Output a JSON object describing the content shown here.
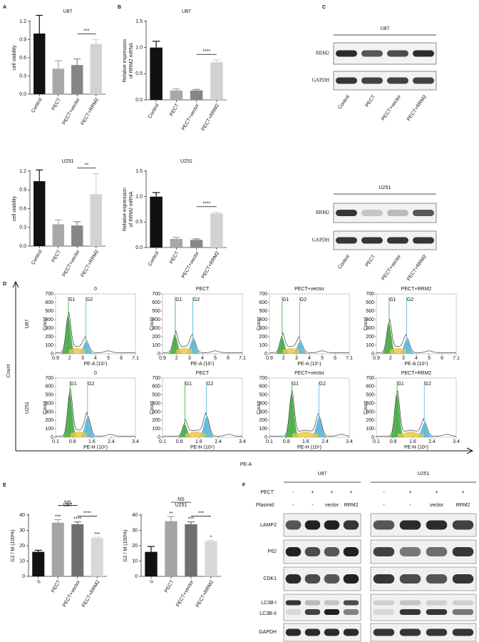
{
  "panels": [
    "A",
    "B",
    "C",
    "D",
    "E",
    "F"
  ],
  "chart_data": [
    {
      "type": "bar",
      "title": "U87",
      "ylabel": [
        "cell viability"
      ],
      "categories": [
        "Control",
        "PECT",
        "PECT+vector",
        "PECT+RRM2"
      ],
      "values": [
        1.0,
        0.42,
        0.48,
        0.83
      ],
      "errors": [
        0.3,
        0.13,
        0.1,
        0.07
      ],
      "colors": [
        "#111111",
        "#a8a8a8",
        "#868686",
        "#d2d2d2"
      ],
      "ylim": [
        0,
        1.2
      ],
      "yticks": [
        {
          "value": 0,
          "label": "0.0"
        },
        0.3,
        0.6,
        0.9,
        1.2
      ],
      "annotations": [
        "***"
      ]
    },
    {
      "type": "bar",
      "title": "U251",
      "ylabel": [
        "cell viability"
      ],
      "categories": [
        "Control",
        "PECT",
        "PECT+vector",
        "PECT+RRM2"
      ],
      "values": [
        1.04,
        0.35,
        0.33,
        0.83
      ],
      "errors": [
        0.18,
        0.07,
        0.06,
        0.33
      ],
      "colors": [
        "#111111",
        "#a8a8a8",
        "#868686",
        "#d2d2d2"
      ],
      "ylim": [
        0,
        1.2
      ],
      "yticks": [
        {
          "value": 0,
          "label": "0.0"
        },
        0.3,
        0.6,
        0.9,
        1.2
      ],
      "annotations": [
        "**"
      ]
    },
    {
      "type": "bar",
      "title": "U87",
      "ylabel": [
        "Relative expression",
        "of RRM2 mRNA"
      ],
      "categories": [
        "Control",
        "PECT",
        "PECT+vector",
        "PECT+RRM2"
      ],
      "values": [
        1.0,
        0.18,
        0.18,
        0.72
      ],
      "errors": [
        0.12,
        0.03,
        0.02,
        0.04
      ],
      "colors": [
        "#111111",
        "#a8a8a8",
        "#868686",
        "#d2d2d2"
      ],
      "ylim": [
        0,
        1.5
      ],
      "yticks": [
        {
          "value": 0,
          "label": "0.0"
        },
        0.5,
        {
          "value": 1,
          "label": "1.0"
        },
        1.5
      ],
      "annotations": [
        "****"
      ]
    },
    {
      "type": "bar",
      "title": "U251",
      "ylabel": [
        "Relative expression",
        "of RRM2 mRNA"
      ],
      "categories": [
        "Control",
        "PECT",
        "PECT+vector",
        "PECT+RRM2"
      ],
      "values": [
        1.0,
        0.17,
        0.15,
        0.67
      ],
      "errors": [
        0.08,
        0.03,
        0.02,
        0.02
      ],
      "colors": [
        "#111111",
        "#a8a8a8",
        "#868686",
        "#d2d2d2"
      ],
      "ylim": [
        0,
        1.5
      ],
      "yticks": [
        {
          "value": 0,
          "label": "0.0"
        },
        0.5,
        {
          "value": 1,
          "label": "1.0"
        },
        1.5
      ],
      "annotations": [
        "****"
      ]
    },
    {
      "type": "bar",
      "title": "U87",
      "ylabel": [
        "G2 / M (100%)"
      ],
      "categories": [
        "0",
        "PECT",
        "PECT+vector",
        "PECT+RRM2"
      ],
      "values": [
        16,
        35,
        34,
        25
      ],
      "errors": [
        1,
        2,
        1.5,
        0.5
      ],
      "colors": [
        "#111111",
        "#a4a4a4",
        "#707070",
        "#d8d8d8"
      ],
      "ylim": [
        0,
        40
      ],
      "yticks": [
        0,
        10,
        20,
        30,
        40
      ],
      "annotations": [
        "NS",
        "****",
        "***",
        "****",
        "***"
      ]
    },
    {
      "type": "bar",
      "title": "U251",
      "ylabel": [
        "G2 / M (100%)"
      ],
      "categories": [
        "0",
        "PECT",
        "PECT+vector",
        "PECT+RRM2"
      ],
      "values": [
        16,
        36,
        34,
        23
      ],
      "errors": [
        3.5,
        3,
        1.5,
        0.5
      ],
      "colors": [
        "#111111",
        "#a4a4a4",
        "#707070",
        "#d8d8d8"
      ],
      "ylim": [
        0,
        40
      ],
      "yticks": [
        0,
        10,
        20,
        30,
        40
      ],
      "annotations": [
        "NS",
        "***",
        "**",
        "***",
        "*"
      ]
    }
  ],
  "c_blot": {
    "groups": [
      "U87",
      "U251"
    ],
    "rows": [
      "RRM2",
      "GAPDH"
    ],
    "lanes": [
      "Control",
      "PECT",
      "PECT+vector",
      "PECT+RRM2"
    ]
  },
  "flow": {
    "rows": [
      "U87",
      "U251"
    ],
    "columns": [
      "0",
      "PECT",
      "PECT+vector",
      "PECT+RRM2"
    ],
    "panel_ylabel": "Count",
    "peaks": [
      "G1",
      "G2"
    ],
    "yticks": [
      0,
      100,
      200,
      300,
      400,
      500,
      600,
      700
    ],
    "row_xticks": [
      [
        0.9,
        2,
        3,
        4,
        5,
        6,
        7.1
      ],
      [
        0.1,
        0.8,
        1.6,
        2.4,
        3.4
      ]
    ],
    "row_xlabels": [
      "PE-A (10⁵)",
      "PE-H (10⁶)"
    ],
    "axis_y": "Count",
    "axis_x": "PE-A"
  },
  "f_blot": {
    "groups": [
      "U87",
      "U251"
    ],
    "header_rows": [
      {
        "label": "PECT",
        "values": [
          "-",
          "+",
          "+",
          "+"
        ]
      },
      {
        "label": "Plasmid",
        "values": [
          "-",
          "-",
          "vector",
          "RRM2"
        ]
      }
    ],
    "rows": [
      "LAMP2",
      "P62",
      "CDK1",
      "LC3B-I",
      "LC3B-II",
      "GAPDH"
    ]
  }
}
